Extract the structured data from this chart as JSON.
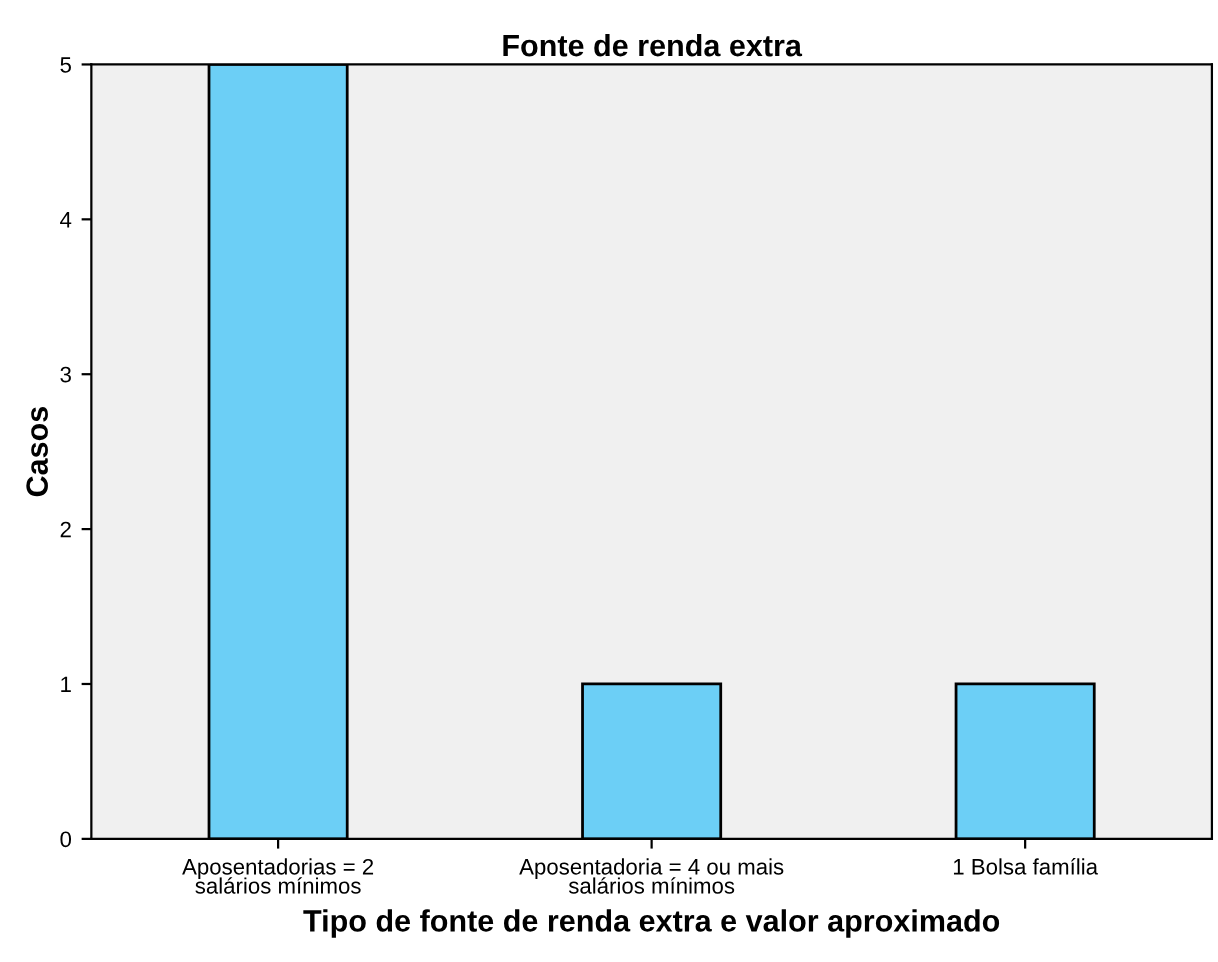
{
  "chart_data": {
    "type": "bar",
    "title": "Fonte de renda extra",
    "xlabel": "Tipo de fonte de renda extra e valor aproximado",
    "ylabel": "Casos",
    "categories": [
      "Aposentadorias = 2\nsalários mínimos",
      "Aposentadoria = 4 ou mais\nsalários mínimos",
      "1 Bolsa família"
    ],
    "values": [
      5,
      1,
      1
    ],
    "color": "#6ccff6",
    "ylim": [
      0,
      5
    ],
    "yticks": [
      0,
      1,
      2,
      3,
      4,
      5
    ],
    "grid": false,
    "legend": false
  }
}
